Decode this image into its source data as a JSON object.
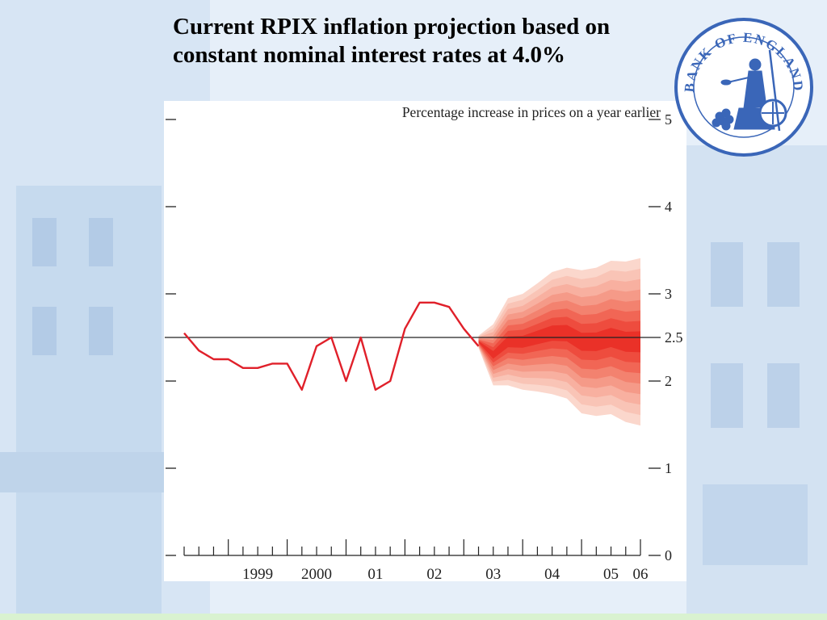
{
  "slide": {
    "title_line1": "Current RPIX inflation projection based on",
    "title_line2": "constant nominal interest rates at 4.0%"
  },
  "logo": {
    "text": "BANK OF ENGLAND",
    "ring_color": "#3a66b8"
  },
  "chart_data": {
    "type": "line",
    "title": "",
    "subtitle": "Percentage increase in prices on a year earlier",
    "xlabel": "",
    "ylabel": "Percentage increase in prices on a year earlier",
    "xlim": [
      1998.25,
      2006.0
    ],
    "ylim": [
      0,
      5
    ],
    "yticks": [
      0,
      1,
      2,
      3,
      4,
      5
    ],
    "ytick_labels": [
      "0",
      "1",
      "2",
      "2.5",
      "3",
      "4",
      "5"
    ],
    "ytick_label_values": [
      0,
      1,
      2,
      2.5,
      3,
      4,
      5
    ],
    "xtick_labels": [
      "1999",
      "2000",
      "01",
      "02",
      "03",
      "04",
      "05",
      "06"
    ],
    "xtick_label_positions": [
      1999.0,
      2000.0,
      2001.0,
      2002.0,
      2003.0,
      2004.0,
      2005.0,
      2006.0
    ],
    "target": {
      "value": 2.5
    },
    "grid": false,
    "line_color": "#e0202a",
    "series": [
      {
        "type": "line",
        "x": [
          1998.25,
          1998.5,
          1998.75,
          1999.0,
          1999.25,
          1999.5,
          1999.75,
          2000.0,
          2000.25,
          2000.5,
          2000.75,
          2001.0,
          2001.25,
          2001.5,
          2001.75,
          2002.0,
          2002.25,
          2002.5,
          2002.75,
          2003.0,
          2003.25
        ],
        "values": [
          2.55,
          2.35,
          2.25,
          2.25,
          2.15,
          2.15,
          2.2,
          2.2,
          1.9,
          2.4,
          2.5,
          2.0,
          2.5,
          1.9,
          2.0,
          2.6,
          2.9,
          2.9,
          2.85,
          2.6,
          2.4
        ]
      }
    ],
    "fan": {
      "x": [
        2003.25,
        2003.5,
        2003.75,
        2004.0,
        2004.25,
        2004.5,
        2004.75,
        2005.0,
        2005.25,
        2005.5,
        2005.75,
        2006.0
      ],
      "central": [
        2.45,
        2.3,
        2.45,
        2.45,
        2.5,
        2.55,
        2.55,
        2.45,
        2.45,
        2.5,
        2.45,
        2.45
      ],
      "half_widths": [
        0.07,
        0.35,
        0.5,
        0.55,
        0.62,
        0.7,
        0.75,
        0.82,
        0.85,
        0.88,
        0.92,
        0.96
      ],
      "colors": [
        "#fbd7cc",
        "#f9c4b6",
        "#f8b0a0",
        "#f59a88",
        "#f3826f",
        "#f16655",
        "#ee4c3e",
        "#ea3128"
      ]
    }
  }
}
